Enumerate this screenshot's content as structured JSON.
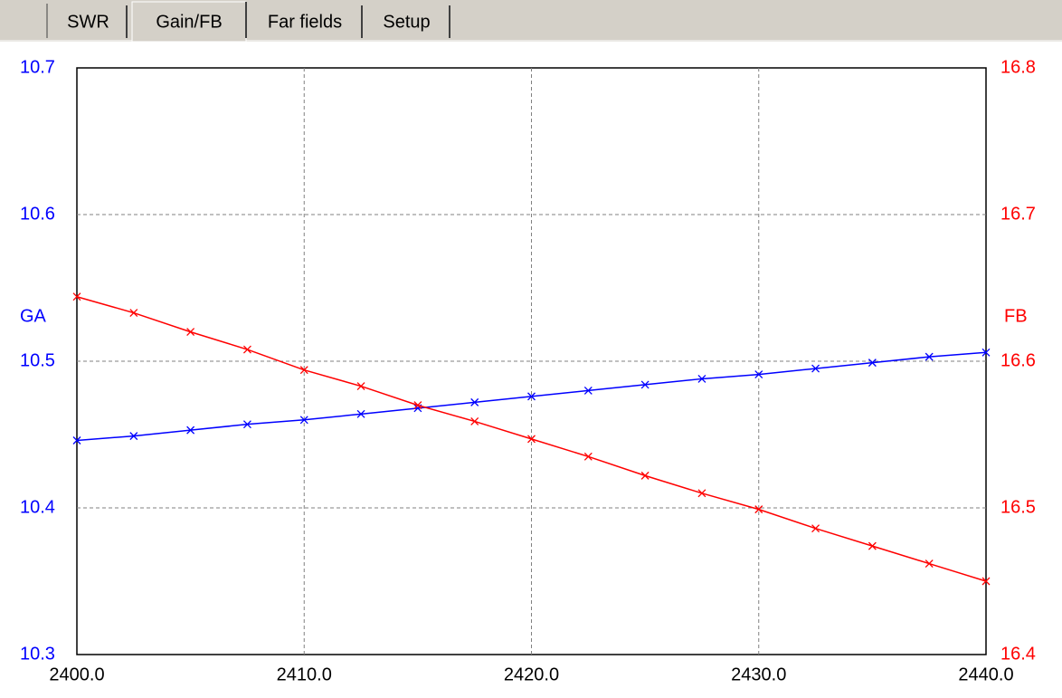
{
  "tabs": [
    "SWR",
    "Gain/FB",
    "Far fields",
    "Setup"
  ],
  "chart_data": {
    "type": "line",
    "ylabel": "GA",
    "y2label": "FB",
    "x": [
      2400,
      2402.5,
      2405,
      2407.5,
      2410,
      2412.5,
      2415,
      2417.5,
      2420,
      2422.5,
      2425,
      2427.5,
      2430,
      2432.5,
      2435,
      2437.5,
      2440
    ],
    "series": [
      {
        "name": "GA",
        "color": "#0000ff",
        "axis": "y",
        "values": [
          10.446,
          10.449,
          10.453,
          10.457,
          10.46,
          10.464,
          10.468,
          10.472,
          10.476,
          10.48,
          10.484,
          10.488,
          10.491,
          10.495,
          10.499,
          10.503,
          10.506
        ]
      },
      {
        "name": "FB",
        "color": "#ff0000",
        "axis": "y2",
        "values": [
          16.644,
          16.633,
          16.62,
          16.608,
          16.594,
          16.583,
          16.57,
          16.559,
          16.547,
          16.535,
          16.522,
          16.51,
          16.499,
          16.486,
          16.474,
          16.462,
          16.45
        ]
      }
    ],
    "xlim": [
      2400,
      2440
    ],
    "xticks": [
      {
        "value": 2400,
        "label": "2400.0"
      },
      {
        "value": 2410,
        "label": "2410.0"
      },
      {
        "value": 2420,
        "label": "2420.0"
      },
      {
        "value": 2430,
        "label": "2430.0"
      },
      {
        "value": 2440,
        "label": "2440.0"
      }
    ],
    "ylim": [
      10.3,
      10.7
    ],
    "yticks": [
      10.3,
      10.4,
      10.5,
      10.6,
      10.7
    ],
    "y2lim": [
      16.4,
      16.8
    ],
    "y2ticks": [
      16.4,
      16.5,
      16.6,
      16.7,
      16.8
    ],
    "grid": true
  }
}
